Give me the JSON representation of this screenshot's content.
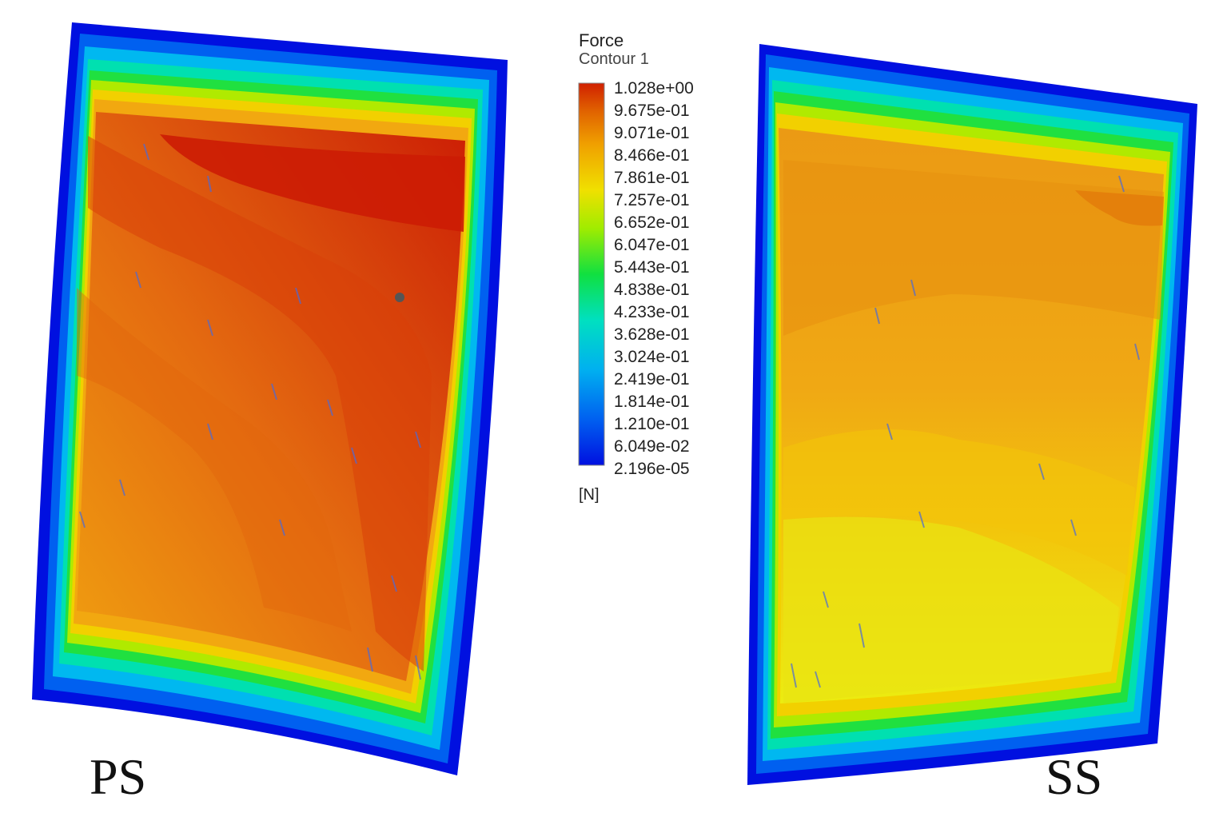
{
  "legend": {
    "title": "Force",
    "subtitle": "Contour 1",
    "units": "[N]",
    "min": 2.196e-05,
    "max": 1.028,
    "ticks": [
      "1.028e+00",
      "9.675e-01",
      "9.071e-01",
      "8.466e-01",
      "7.861e-01",
      "7.257e-01",
      "6.652e-01",
      "6.047e-01",
      "5.443e-01",
      "4.838e-01",
      "4.233e-01",
      "3.628e-01",
      "3.024e-01",
      "2.419e-01",
      "1.814e-01",
      "1.210e-01",
      "6.049e-02",
      "2.196e-05"
    ],
    "colormap": [
      "#0010e0",
      "#0050f0",
      "#0090f0",
      "#00c8e8",
      "#00e0a0",
      "#10e040",
      "#80e800",
      "#d8ee00",
      "#f4d800",
      "#f2a800",
      "#e87400",
      "#d83a00",
      "#c81400"
    ]
  },
  "panels": [
    {
      "label": "PS",
      "side": "pressure",
      "peak_force_fraction": 1.0
    },
    {
      "label": "SS",
      "side": "suction",
      "peak_force_fraction": 0.9
    }
  ]
}
